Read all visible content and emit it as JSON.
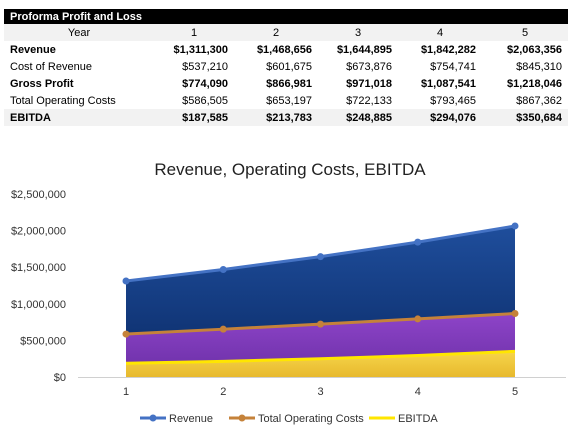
{
  "table": {
    "title": "Proforma Profit and Loss",
    "year_label": "Year",
    "years": [
      "1",
      "2",
      "3",
      "4",
      "5"
    ],
    "rows": [
      {
        "label": "Revenue",
        "bold": true,
        "values": [
          "$1,311,300",
          "$1,468,656",
          "$1,644,895",
          "$1,842,282",
          "$2,063,356"
        ]
      },
      {
        "label": "Cost of Revenue",
        "bold": false,
        "values": [
          "$537,210",
          "$601,675",
          "$673,876",
          "$754,741",
          "$845,310"
        ]
      },
      {
        "label": "Gross Profit",
        "bold": true,
        "values": [
          "$774,090",
          "$866,981",
          "$971,018",
          "$1,087,541",
          "$1,218,046"
        ]
      },
      {
        "label": "Total Operating Costs",
        "bold": false,
        "values": [
          "$586,505",
          "$653,197",
          "$722,133",
          "$793,465",
          "$867,362"
        ]
      },
      {
        "label": "EBITDA",
        "bold": true,
        "values": [
          "$187,585",
          "$213,783",
          "$248,885",
          "$294,076",
          "$350,684"
        ]
      }
    ]
  },
  "chart_data": {
    "type": "area",
    "title": "Revenue, Operating Costs, EBITDA",
    "x": [
      "1",
      "2",
      "3",
      "4",
      "5"
    ],
    "ylim": [
      0,
      2500000
    ],
    "yticks": [
      0,
      500000,
      1000000,
      1500000,
      2000000,
      2500000
    ],
    "ytick_labels": [
      "$0",
      "$500,000",
      "$1,000,000",
      "$1,500,000",
      "$2,000,000",
      "$2,500,000"
    ],
    "grid": false,
    "legend": "bottom",
    "series": [
      {
        "name": "Revenue",
        "values": [
          1311300,
          1468656,
          1644895,
          1842282,
          2063356
        ],
        "line_color": "#4472c4",
        "fill_top": "#1f4e9c",
        "fill_bottom": "#0a2a66"
      },
      {
        "name": "Total Operating Costs",
        "values": [
          586505,
          653197,
          722133,
          793465,
          867362
        ],
        "line_color": "#c5823a",
        "fill_top": "#8e44c8",
        "fill_bottom": "#6a2fa6"
      },
      {
        "name": "EBITDA",
        "values": [
          187585,
          213783,
          248885,
          294076,
          350684
        ],
        "line_color": "#ffe600",
        "fill_top": "#f7d54a",
        "fill_bottom": "#e7b92e"
      }
    ]
  }
}
